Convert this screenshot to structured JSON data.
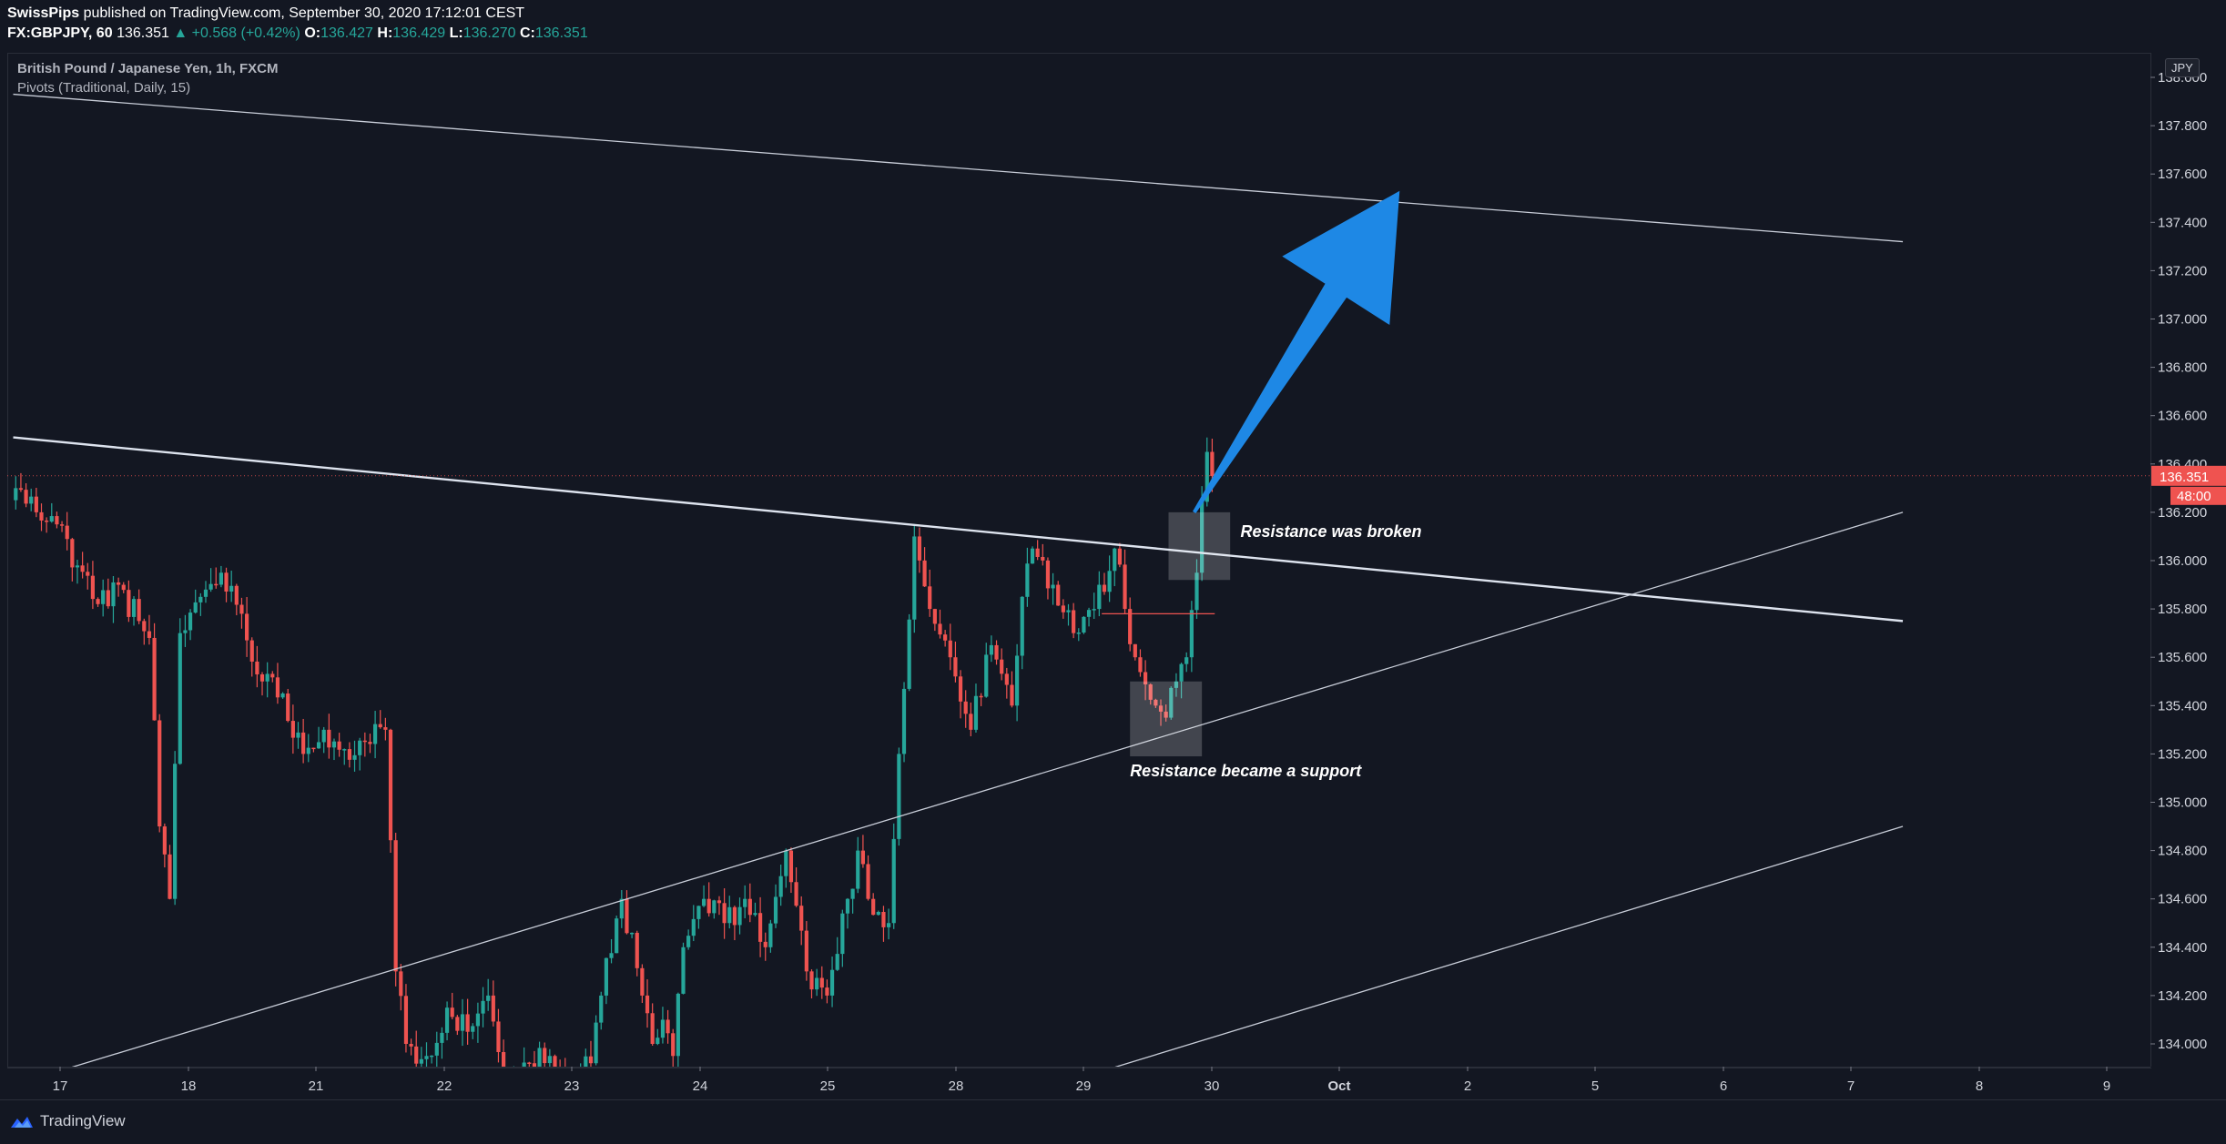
{
  "header": {
    "publisher": "SwissPips",
    "published_text": "published on TradingView.com, September 30, 2020 17:12:01 CEST",
    "symbol": "FX:GBPJPY, 60",
    "last": "136.351",
    "change": "+0.568 (+0.42%)",
    "o_label": "O:",
    "o_value": "136.427",
    "h_label": "H:",
    "h_value": "136.429",
    "l_label": "L:",
    "l_value": "136.270",
    "c_label": "C:",
    "c_value": "136.351"
  },
  "legend": {
    "instrument": "British Pound / Japanese Yen, 1h, FXCM",
    "indicator": "Pivots (Traditional, Daily, 15)"
  },
  "currency_label": "JPY",
  "price_tag": {
    "value": "136.351",
    "countdown": "48:00",
    "color": "#ef5350"
  },
  "annotations": {
    "broken": "Resistance was broken",
    "support": "Resistance became a support"
  },
  "footer": {
    "brand": "TradingView"
  },
  "colors": {
    "up": "#26a69a",
    "down": "#ef5350",
    "arrow": "#1e88e5",
    "background": "#131722"
  },
  "chart_data": {
    "type": "candlestick",
    "title": "British Pound / Japanese Yen, 1h, FXCM",
    "ylim": [
      133.9,
      138.1
    ],
    "y_ticks": [
      "134.000",
      "134.200",
      "134.400",
      "134.600",
      "134.800",
      "135.000",
      "135.200",
      "135.400",
      "135.600",
      "135.800",
      "136.000",
      "136.200",
      "136.400",
      "136.600",
      "136.800",
      "137.000",
      "137.200",
      "137.400",
      "137.600",
      "137.800",
      "138.000"
    ],
    "x_ticks": [
      "17",
      "18",
      "21",
      "22",
      "23",
      "24",
      "25",
      "28",
      "29",
      "30",
      "Oct",
      "2",
      "5",
      "6",
      "7",
      "8",
      "9"
    ],
    "close_anchors": [
      [
        0,
        136.3
      ],
      [
        4,
        136.2
      ],
      [
        8,
        136.15
      ],
      [
        12,
        135.98
      ],
      [
        16,
        135.82
      ],
      [
        20,
        135.9
      ],
      [
        24,
        135.75
      ],
      [
        26,
        135.68
      ],
      [
        28,
        134.9
      ],
      [
        30,
        134.6
      ],
      [
        32,
        135.7
      ],
      [
        36,
        135.85
      ],
      [
        40,
        135.95
      ],
      [
        44,
        135.78
      ],
      [
        48,
        135.5
      ],
      [
        52,
        135.45
      ],
      [
        56,
        135.2
      ],
      [
        60,
        135.3
      ],
      [
        64,
        135.22
      ],
      [
        68,
        135.25
      ],
      [
        72,
        135.3
      ],
      [
        74,
        134.3
      ],
      [
        76,
        134.0
      ],
      [
        80,
        133.95
      ],
      [
        84,
        134.15
      ],
      [
        88,
        134.05
      ],
      [
        92,
        134.2
      ],
      [
        96,
        133.85
      ],
      [
        100,
        133.92
      ],
      [
        104,
        133.95
      ],
      [
        108,
        133.8
      ],
      [
        112,
        133.92
      ],
      [
        114,
        134.2
      ],
      [
        118,
        134.6
      ],
      [
        122,
        134.2
      ],
      [
        124,
        134.0
      ],
      [
        126,
        134.1
      ],
      [
        128,
        133.95
      ],
      [
        130,
        134.4
      ],
      [
        134,
        134.6
      ],
      [
        138,
        134.5
      ],
      [
        142,
        134.6
      ],
      [
        146,
        134.4
      ],
      [
        150,
        134.8
      ],
      [
        154,
        134.3
      ],
      [
        158,
        134.2
      ],
      [
        162,
        134.6
      ],
      [
        164,
        134.8
      ],
      [
        166,
        134.6
      ],
      [
        170,
        134.5
      ],
      [
        172,
        135.2
      ],
      [
        175,
        136.1
      ],
      [
        178,
        135.8
      ],
      [
        182,
        135.6
      ],
      [
        186,
        135.3
      ],
      [
        190,
        135.65
      ],
      [
        194,
        135.4
      ],
      [
        196,
        135.85
      ],
      [
        198,
        136.05
      ],
      [
        202,
        135.9
      ],
      [
        206,
        135.7
      ],
      [
        210,
        135.8
      ],
      [
        214,
        136.05
      ],
      [
        216,
        135.8
      ],
      [
        218,
        135.6
      ],
      [
        222,
        135.4
      ],
      [
        224,
        135.35
      ],
      [
        226,
        135.5
      ],
      [
        228,
        135.6
      ],
      [
        230,
        135.95
      ],
      [
        232,
        136.45
      ],
      [
        233,
        136.35
      ]
    ],
    "levels": [
      {
        "name": "upper trendline",
        "from": [
          0,
          137.93
        ],
        "to": [
          368,
          137.32
        ]
      },
      {
        "name": "broken resistance",
        "from": [
          0,
          136.51
        ],
        "to": [
          368,
          135.75
        ]
      },
      {
        "name": "support channel",
        "from": [
          0,
          133.83
        ],
        "to": [
          368,
          136.2
        ]
      },
      {
        "name": "lower channel",
        "from": [
          214,
          133.9
        ],
        "to": [
          368,
          134.9
        ]
      }
    ],
    "target_arrow": {
      "from": [
        230,
        136.2
      ],
      "to": [
        270,
        137.53
      ]
    }
  }
}
